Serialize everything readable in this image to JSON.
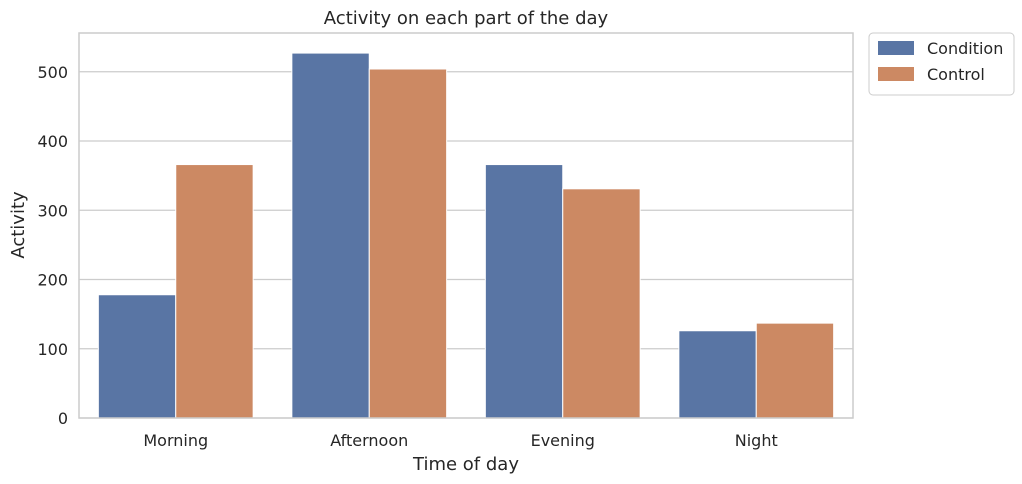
{
  "chart_data": {
    "type": "bar",
    "title": "Activity on each part of the day",
    "xlabel": "Time of day",
    "ylabel": "Activity",
    "categories": [
      "Morning",
      "Afternoon",
      "Evening",
      "Night"
    ],
    "series": [
      {
        "name": "Condition",
        "values": [
          178,
          527,
          366,
          126
        ],
        "color": "#5975a4"
      },
      {
        "name": "Control",
        "values": [
          366,
          504,
          331,
          137
        ],
        "color": "#cc8963"
      }
    ],
    "ylim": [
      0,
      556
    ],
    "yticks": [
      0,
      100,
      200,
      300,
      400,
      500
    ],
    "grid": true,
    "legend_position": "outside-top-right"
  }
}
